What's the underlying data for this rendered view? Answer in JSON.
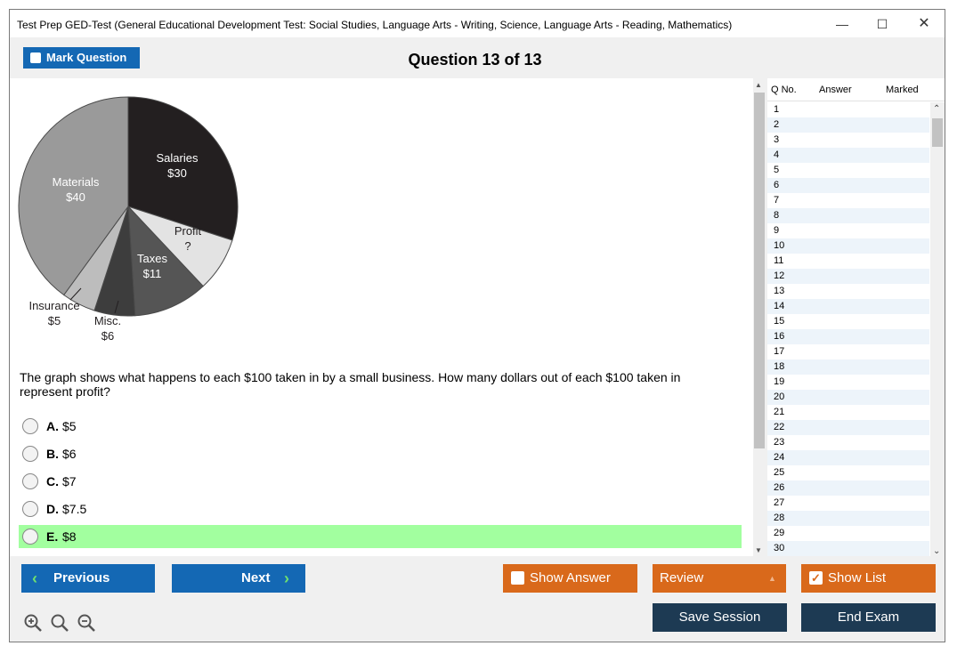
{
  "window": {
    "title": "Test Prep GED-Test (General Educational Development Test: Social Studies, Language Arts - Writing, Science, Language Arts - Reading, Mathematics)",
    "minimize_icon": "minimize-icon",
    "maximize_icon": "maximize-icon",
    "close_icon": "close-icon"
  },
  "toolbar": {
    "mark_label": "Mark Question",
    "question_title": "Question 13 of 13"
  },
  "chart_data": {
    "type": "pie",
    "slices": [
      {
        "label": "Salaries",
        "value_label": "$30",
        "value": 30,
        "color": "#231f20"
      },
      {
        "label": "Profit",
        "value_label": "?",
        "value": 8,
        "color": "#e3e3e3"
      },
      {
        "label": "Taxes",
        "value_label": "$11",
        "value": 11,
        "color": "#555555"
      },
      {
        "label": "Misc.",
        "value_label": "$6",
        "value": 6,
        "color": "#3d3d3d"
      },
      {
        "label": "Insurance",
        "value_label": "$5",
        "value": 5,
        "color": "#bdbdbd"
      },
      {
        "label": "Materials",
        "value_label": "$40",
        "value": 40,
        "color": "#9a9a9a"
      }
    ]
  },
  "question": {
    "text": "The graph shows what happens to each $100 taken in by a small business. How many dollars out of each $100 taken in represent profit?",
    "options": [
      {
        "letter": "A.",
        "text": "$5",
        "selected": false
      },
      {
        "letter": "B.",
        "text": "$6",
        "selected": false
      },
      {
        "letter": "C.",
        "text": "$7",
        "selected": false
      },
      {
        "letter": "D.",
        "text": "$7.5",
        "selected": false
      },
      {
        "letter": "E.",
        "text": "$8",
        "selected": true
      }
    ]
  },
  "list": {
    "headers": {
      "qno": "Q No.",
      "answer": "Answer",
      "marked": "Marked"
    },
    "rows": [
      "1",
      "2",
      "3",
      "4",
      "5",
      "6",
      "7",
      "8",
      "9",
      "10",
      "11",
      "12",
      "13",
      "14",
      "15",
      "16",
      "17",
      "18",
      "19",
      "20",
      "21",
      "22",
      "23",
      "24",
      "25",
      "26",
      "27",
      "28",
      "29",
      "30"
    ]
  },
  "buttons": {
    "previous": "Previous",
    "next": "Next",
    "show_answer": "Show Answer",
    "review": "Review",
    "show_list": "Show List",
    "save_session": "Save Session",
    "end_exam": "End Exam"
  },
  "colors": {
    "primary_blue": "#1468b4",
    "orange": "#d9691b",
    "dark_navy": "#1d3a53",
    "selected_green": "#a2ff9f"
  }
}
